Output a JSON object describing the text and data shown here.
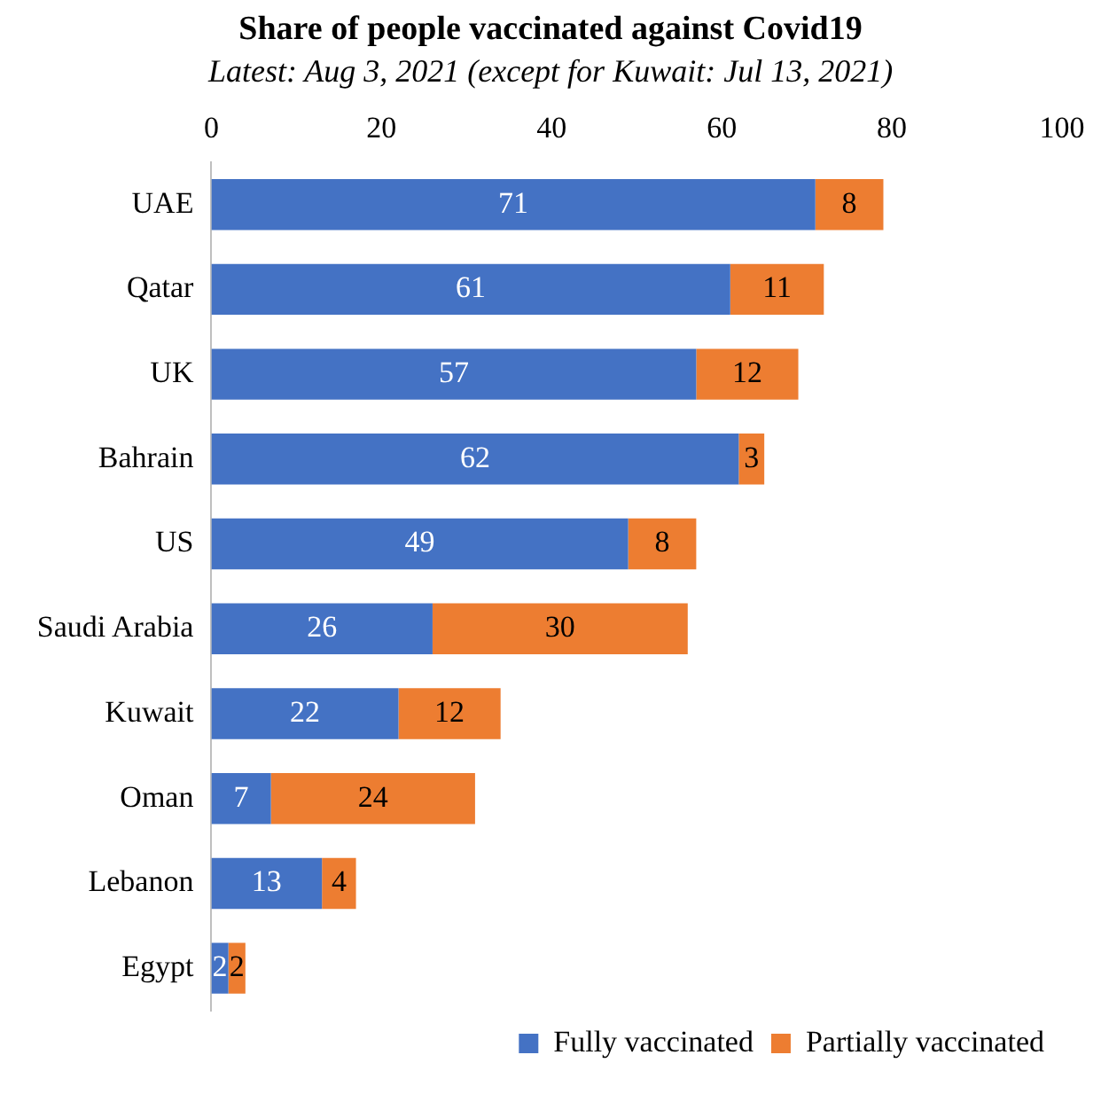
{
  "chart_data": {
    "type": "bar",
    "orientation": "horizontal",
    "stacked": true,
    "title": "Share of people vaccinated against Covid19",
    "subtitle": "Latest: Aug 3, 2021 (except for Kuwait: Jul 13, 2021)",
    "categories": [
      "UAE",
      "Qatar",
      "UK",
      "Bahrain",
      "US",
      "Saudi Arabia",
      "Kuwait",
      "Oman",
      "Lebanon",
      "Egypt"
    ],
    "series": [
      {
        "name": "Fully vaccinated",
        "color": "#4472c4",
        "values": [
          71,
          61,
          57,
          62,
          49,
          26,
          22,
          7,
          13,
          2
        ]
      },
      {
        "name": "Partially vaccinated",
        "color": "#ed7d31",
        "values": [
          8,
          11,
          12,
          3,
          8,
          30,
          12,
          24,
          4,
          2
        ]
      }
    ],
    "xlim": [
      0,
      100
    ],
    "xticks": [
      0,
      20,
      40,
      60,
      80,
      100
    ],
    "grid": false,
    "legend": "bottom right",
    "data_labels": true
  }
}
